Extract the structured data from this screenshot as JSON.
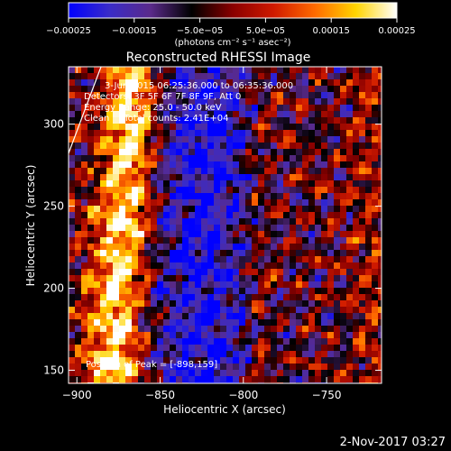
{
  "chart_data": {
    "type": "heatmap",
    "title": "Reconstructed RHESSI Image",
    "xlabel": "Heliocentric X (arcsec)",
    "ylabel": "Heliocentric Y (arcsec)",
    "xlim": [
      -905,
      -717
    ],
    "ylim": [
      142,
      335
    ],
    "x_ticks": [
      -900,
      -850,
      -800,
      -750
    ],
    "x_tick_labels": [
      "−900",
      "−850",
      "−800",
      "−750"
    ],
    "y_ticks": [
      150,
      200,
      250,
      300
    ],
    "y_tick_labels": [
      "150",
      "200",
      "250",
      "300"
    ],
    "colorbar": {
      "min": -0.00025,
      "max": 0.00025,
      "ticks": [
        -0.00025,
        -0.00015,
        -5e-05,
        5e-05,
        0.00015,
        0.00025
      ],
      "tick_labels": [
        "−0.00025",
        "−0.00015",
        "−5.0e−05",
        "5.0e−05",
        "0.00015",
        "0.00025"
      ],
      "units_label": "(photons cm⁻² s⁻¹ asec⁻²)",
      "colors": [
        "#0000ff",
        "#3a2cc8",
        "#5a2a8a",
        "#000000",
        "#8a0000",
        "#d01a00",
        "#ff6a00",
        "#ffd400",
        "#ffffff"
      ]
    },
    "annotations": [
      "3-Jun-2015 06:25:36.000 to 06:35:36.000",
      "Detectors: 3F 5F 6F 7F 8F 9F, Att 0",
      "Energy Range: 25.0 - 50.0 keV",
      "Clean     Total counts: 2.41E+04"
    ],
    "peak_label": "Position of Peak = [-898,159]",
    "footer_timestamp": "2-Nov-2017 03:27"
  }
}
